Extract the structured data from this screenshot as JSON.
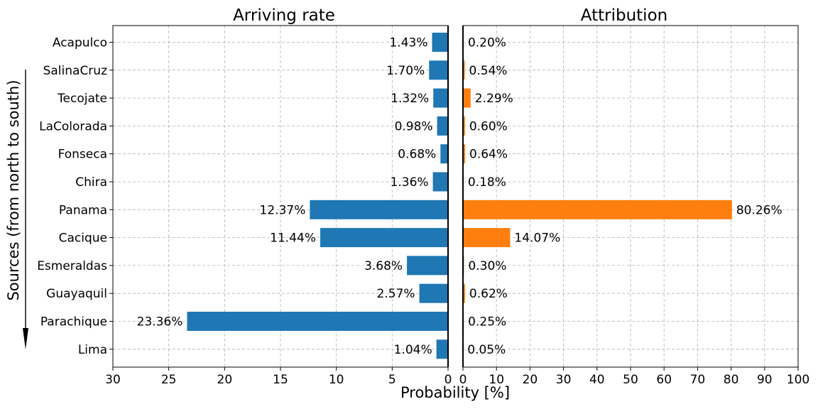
{
  "chart_data": {
    "type": "bar",
    "orientation": "horizontal",
    "categories": [
      "Acapulco",
      "SalinaCruz",
      "Tecojate",
      "LaColorada",
      "Fonseca",
      "Chira",
      "Panama",
      "Cacique",
      "Esmeraldas",
      "Guayaquil",
      "Parachique",
      "Lima"
    ],
    "panels": [
      {
        "title": "Arriving rate",
        "color": "#1f77b4",
        "direction": "leftward",
        "xlim": [
          30,
          0
        ],
        "ticks": [
          30,
          25,
          20,
          15,
          10,
          5,
          0
        ],
        "values": [
          1.43,
          1.7,
          1.32,
          0.98,
          0.68,
          1.36,
          12.37,
          11.44,
          3.68,
          2.57,
          23.36,
          1.04
        ],
        "labels": [
          "1.43%",
          "1.70%",
          "1.32%",
          "0.98%",
          "0.68%",
          "1.36%",
          "12.37%",
          "11.44%",
          "3.68%",
          "2.57%",
          "23.36%",
          "1.04%"
        ]
      },
      {
        "title": "Attribution",
        "color": "#ff7f0e",
        "direction": "rightward",
        "xlim": [
          0,
          100
        ],
        "ticks": [
          0,
          10,
          20,
          30,
          40,
          50,
          60,
          70,
          80,
          90,
          100
        ],
        "values": [
          0.2,
          0.54,
          2.29,
          0.6,
          0.64,
          0.18,
          80.26,
          14.07,
          0.3,
          0.62,
          0.25,
          0.05
        ],
        "labels": [
          "0.20%",
          "0.54%",
          "2.29%",
          "0.60%",
          "0.64%",
          "0.18%",
          "80.26%",
          "14.07%",
          "0.30%",
          "0.62%",
          "0.25%",
          "0.05%"
        ]
      }
    ],
    "xlabel": "Probability [%]",
    "ylabel": "Sources (from north to south)",
    "grid": true
  }
}
